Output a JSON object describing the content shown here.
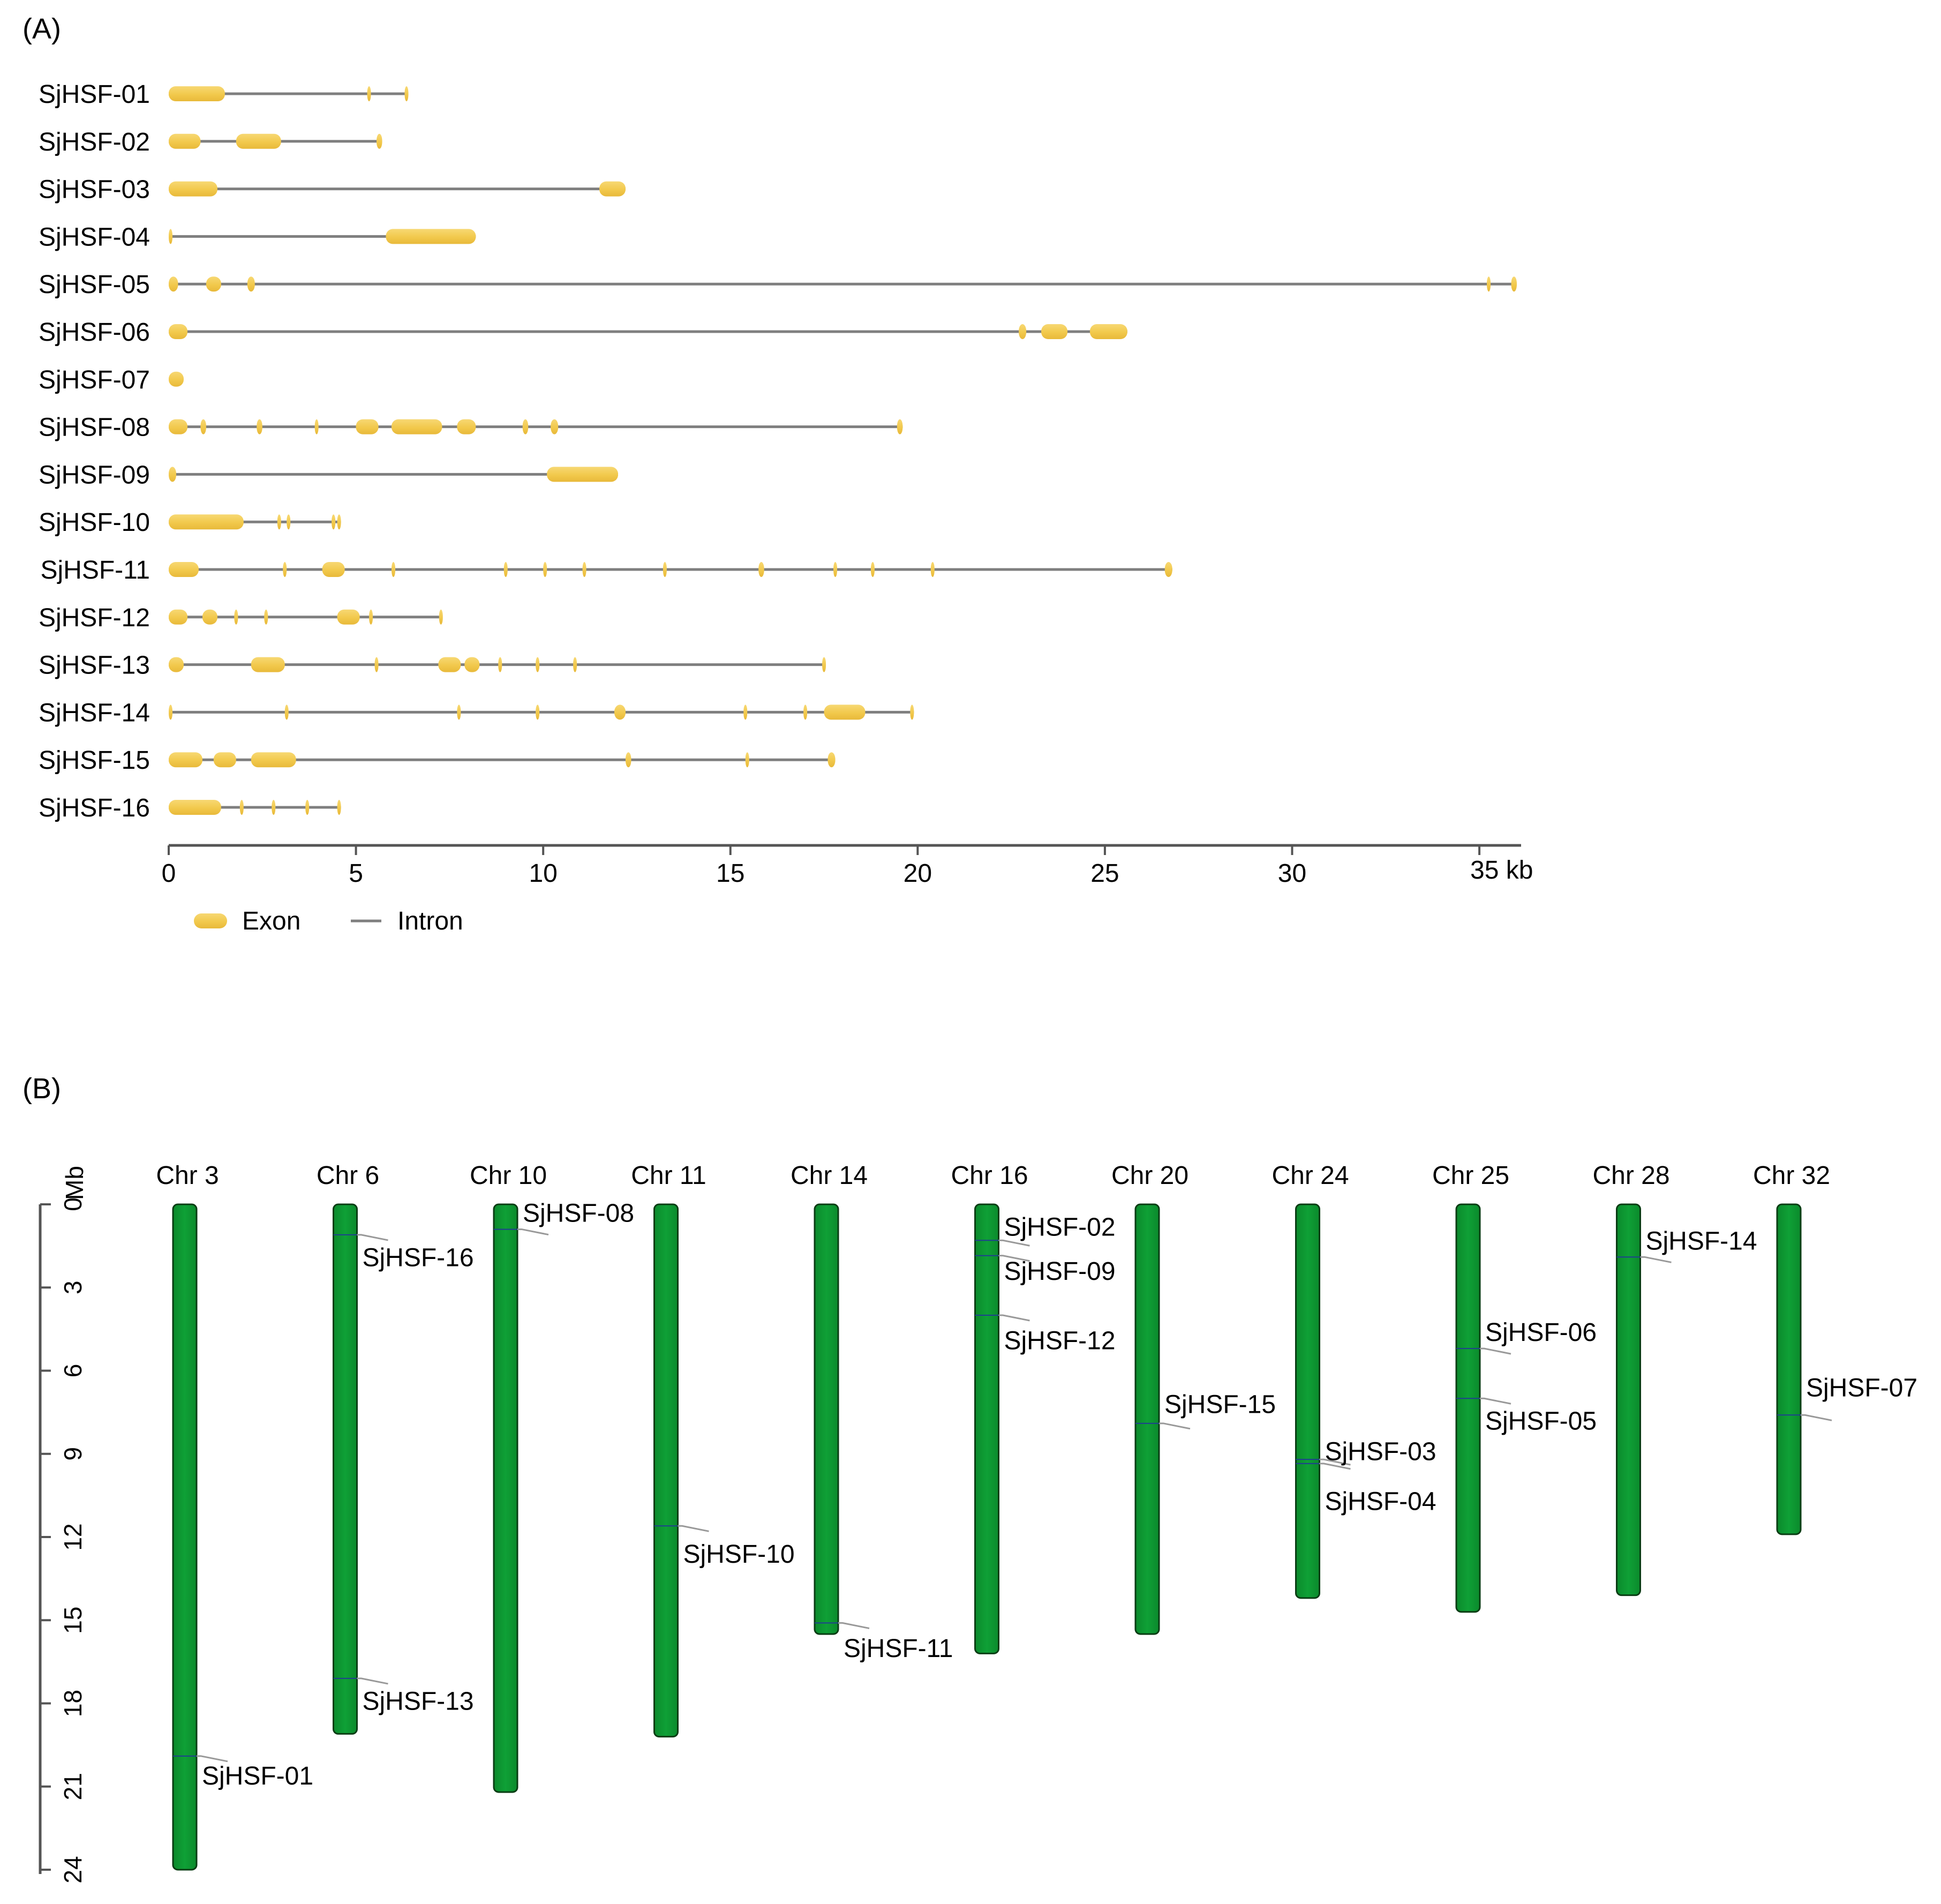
{
  "panel_a": {
    "label": "(A)",
    "unit_label": "35 kb",
    "axis_max_kb": 36,
    "ticks": [
      "0",
      "5",
      "10",
      "15",
      "20",
      "25",
      "30"
    ],
    "tick_values": [
      0,
      5,
      10,
      15,
      20,
      25,
      30,
      35
    ],
    "legend": {
      "exon": "Exon",
      "intron": "Intron"
    },
    "colors": {
      "exon": "#F2C94C",
      "exon_light": "#FAE3A0",
      "intron": "#7f7f7f",
      "axis": "#555555"
    },
    "genes": [
      {
        "name": "SjHSF-01",
        "length": 6.4,
        "exons": [
          [
            0.0,
            1.5
          ],
          [
            5.3,
            5.4
          ],
          [
            6.3,
            6.4
          ]
        ]
      },
      {
        "name": "SjHSF-02",
        "length": 5.7,
        "exons": [
          [
            0.0,
            0.85
          ],
          [
            1.8,
            3.0
          ],
          [
            5.55,
            5.7
          ]
        ]
      },
      {
        "name": "SjHSF-03",
        "length": 12.2,
        "exons": [
          [
            0.0,
            1.3
          ],
          [
            11.5,
            12.2
          ]
        ]
      },
      {
        "name": "SjHSF-04",
        "length": 8.2,
        "exons": [
          [
            0.0,
            0.1
          ],
          [
            5.8,
            8.2
          ]
        ]
      },
      {
        "name": "SjHSF-05",
        "length": 36.0,
        "exons": [
          [
            0.0,
            0.25
          ],
          [
            1.0,
            1.4
          ],
          [
            2.1,
            2.3
          ],
          [
            35.2,
            35.3
          ],
          [
            35.85,
            36.0
          ]
        ]
      },
      {
        "name": "SjHSF-06",
        "length": 25.6,
        "exons": [
          [
            0.0,
            0.5
          ],
          [
            22.7,
            22.9
          ],
          [
            23.3,
            24.0
          ],
          [
            24.6,
            25.6
          ]
        ]
      },
      {
        "name": "SjHSF-07",
        "length": 0.4,
        "exons": [
          [
            0.0,
            0.4
          ]
        ]
      },
      {
        "name": "SjHSF-08",
        "length": 19.6,
        "exons": [
          [
            0.0,
            0.5
          ],
          [
            0.85,
            1.0
          ],
          [
            2.35,
            2.5
          ],
          [
            3.9,
            4.0
          ],
          [
            5.0,
            5.6
          ],
          [
            5.95,
            7.3
          ],
          [
            7.7,
            8.2
          ],
          [
            9.45,
            9.6
          ],
          [
            10.2,
            10.4
          ],
          [
            19.45,
            19.6
          ]
        ]
      },
      {
        "name": "SjHSF-09",
        "length": 12.0,
        "exons": [
          [
            0.0,
            0.2
          ],
          [
            10.1,
            12.0
          ]
        ]
      },
      {
        "name": "SjHSF-10",
        "length": 4.6,
        "exons": [
          [
            0.0,
            2.0
          ],
          [
            2.9,
            3.0
          ],
          [
            3.15,
            3.25
          ],
          [
            4.35,
            4.45
          ],
          [
            4.5,
            4.6
          ]
        ]
      },
      {
        "name": "SjHSF-11",
        "length": 26.8,
        "exons": [
          [
            0.0,
            0.8
          ],
          [
            3.05,
            3.15
          ],
          [
            4.1,
            4.7
          ],
          [
            5.95,
            6.05
          ],
          [
            8.95,
            9.05
          ],
          [
            10.0,
            10.1
          ],
          [
            11.05,
            11.15
          ],
          [
            13.2,
            13.3
          ],
          [
            15.75,
            15.9
          ],
          [
            17.75,
            17.85
          ],
          [
            18.75,
            18.85
          ],
          [
            20.35,
            20.45
          ],
          [
            26.6,
            26.8
          ]
        ]
      },
      {
        "name": "SjHSF-12",
        "length": 7.3,
        "exons": [
          [
            0.0,
            0.5
          ],
          [
            0.9,
            1.3
          ],
          [
            1.75,
            1.82
          ],
          [
            2.55,
            2.62
          ],
          [
            4.5,
            5.1
          ],
          [
            5.35,
            5.45
          ],
          [
            7.22,
            7.3
          ]
        ]
      },
      {
        "name": "SjHSF-13",
        "length": 17.5,
        "exons": [
          [
            0.0,
            0.4
          ],
          [
            2.2,
            3.1
          ],
          [
            5.5,
            5.6
          ],
          [
            7.2,
            7.8
          ],
          [
            7.9,
            8.3
          ],
          [
            8.8,
            8.9
          ],
          [
            9.8,
            9.9
          ],
          [
            10.8,
            10.9
          ],
          [
            17.45,
            17.5
          ]
        ]
      },
      {
        "name": "SjHSF-14",
        "length": 19.9,
        "exons": [
          [
            0.0,
            0.1
          ],
          [
            3.1,
            3.2
          ],
          [
            7.7,
            7.8
          ],
          [
            9.8,
            9.9
          ],
          [
            11.9,
            12.2
          ],
          [
            15.35,
            15.45
          ],
          [
            16.95,
            17.05
          ],
          [
            17.5,
            18.6
          ],
          [
            19.8,
            19.9
          ]
        ]
      },
      {
        "name": "SjHSF-15",
        "length": 17.8,
        "exons": [
          [
            0.0,
            0.9
          ],
          [
            1.2,
            1.8
          ],
          [
            2.2,
            3.4
          ],
          [
            12.2,
            12.35
          ],
          [
            15.4,
            15.5
          ],
          [
            17.6,
            17.8
          ]
        ]
      },
      {
        "name": "SjHSF-16",
        "length": 4.6,
        "exons": [
          [
            0.0,
            1.4
          ],
          [
            1.9,
            2.0
          ],
          [
            2.75,
            2.85
          ],
          [
            3.65,
            3.75
          ],
          [
            4.5,
            4.6
          ]
        ]
      }
    ]
  },
  "panel_b": {
    "label": "(B)",
    "axis_label": "Mb",
    "axis_max_mb": 24,
    "ticks": [
      "0",
      "3",
      "6",
      "9",
      "12",
      "15",
      "18",
      "21",
      "24"
    ],
    "tick_values": [
      0,
      3,
      6,
      9,
      12,
      15,
      18,
      21,
      24
    ],
    "colors": {
      "chromosome": "#008C2A",
      "chromosome_edge": "#0a3d14",
      "leader": "#999999",
      "marker": "#1f3f8f"
    },
    "chromosomes": [
      {
        "name": "Chr 3",
        "length": 24.0,
        "genes": [
          {
            "name": "SjHSF-01",
            "pos": 19.9,
            "label_pos": 20.6
          }
        ]
      },
      {
        "name": "Chr 6",
        "length": 19.1,
        "genes": [
          {
            "name": "SjHSF-16",
            "pos": 1.1,
            "label_pos": 1.9
          },
          {
            "name": "SjHSF-13",
            "pos": 17.1,
            "label_pos": 17.9
          }
        ]
      },
      {
        "name": "Chr 10",
        "length": 21.2,
        "genes": [
          {
            "name": "SjHSF-08",
            "pos": 0.9,
            "label_pos": 0.3
          }
        ]
      },
      {
        "name": "Chr 11",
        "length": 19.2,
        "genes": [
          {
            "name": "SjHSF-10",
            "pos": 11.6,
            "label_pos": 12.6
          }
        ]
      },
      {
        "name": "Chr 14",
        "length": 15.5,
        "genes": [
          {
            "name": "SjHSF-11",
            "pos": 15.1,
            "label_pos": 16.0
          }
        ]
      },
      {
        "name": "Chr 16",
        "length": 16.2,
        "genes": [
          {
            "name": "SjHSF-02",
            "pos": 1.3,
            "label_pos": 0.8
          },
          {
            "name": "SjHSF-09",
            "pos": 1.85,
            "label_pos": 2.4
          },
          {
            "name": "SjHSF-12",
            "pos": 4.0,
            "label_pos": 4.9
          }
        ]
      },
      {
        "name": "Chr 20",
        "length": 15.5,
        "genes": [
          {
            "name": "SjHSF-15",
            "pos": 7.9,
            "label_pos": 7.2
          }
        ]
      },
      {
        "name": "Chr 24",
        "length": 14.2,
        "genes": [
          {
            "name": "SjHSF-03",
            "pos": 9.2,
            "label_pos": 8.9
          },
          {
            "name": "SjHSF-04",
            "pos": 9.35,
            "label_pos": 10.7
          }
        ]
      },
      {
        "name": "Chr 25",
        "length": 14.7,
        "genes": [
          {
            "name": "SjHSF-06",
            "pos": 5.2,
            "label_pos": 4.6
          },
          {
            "name": "SjHSF-05",
            "pos": 7.0,
            "label_pos": 7.8
          }
        ]
      },
      {
        "name": "Chr 28",
        "length": 14.1,
        "genes": [
          {
            "name": "SjHSF-14",
            "pos": 1.9,
            "label_pos": 1.3
          }
        ]
      },
      {
        "name": "Chr 32",
        "length": 11.9,
        "genes": [
          {
            "name": "SjHSF-07",
            "pos": 7.6,
            "label_pos": 6.6
          }
        ]
      }
    ]
  }
}
